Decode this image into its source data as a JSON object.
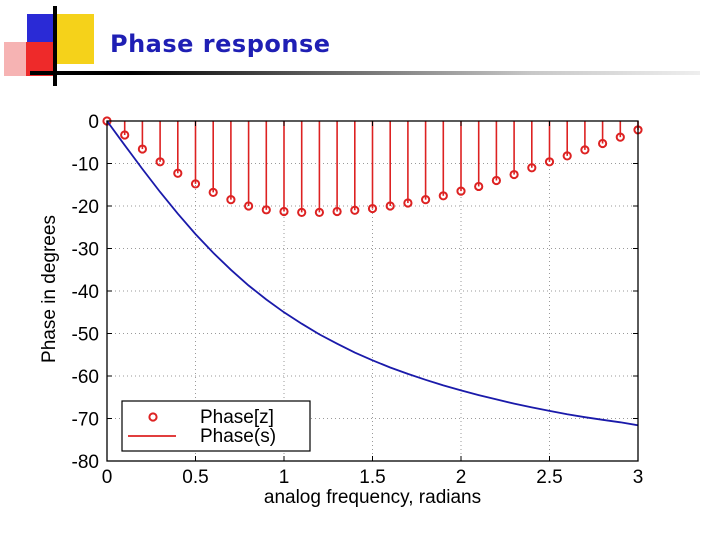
{
  "slide": {
    "title": "Phase response"
  },
  "colors": {
    "title": "#1f1fb4",
    "deco_blue": "#2a2ad6",
    "deco_yellow": "#f5d21a",
    "deco_red": "#ee2a2a",
    "deco_pink": "#f6b3b3",
    "phase_z": "#dd2222",
    "phase_s": "#1a1aaa"
  },
  "chart_data": {
    "type": "line",
    "xlabel": "analog frequency, radians",
    "ylabel": "Phase in degrees",
    "xlim": [
      0,
      3
    ],
    "ylim": [
      -80,
      0
    ],
    "xticks": [
      0,
      0.5,
      1,
      1.5,
      2,
      2.5,
      3
    ],
    "xtick_labels": [
      "0",
      "0.5",
      "1",
      "1.5",
      "2",
      "2.5",
      "3"
    ],
    "yticks": [
      0,
      -10,
      -20,
      -30,
      -40,
      -50,
      -60,
      -70,
      -80
    ],
    "ytick_labels": [
      "0",
      "-10",
      "-20",
      "-30",
      "-40",
      "-50",
      "-60",
      "-70",
      "-80"
    ],
    "grid": true,
    "legend_position": "bottom-left",
    "series": [
      {
        "name": "Phase[z]",
        "style": "stem",
        "x": [
          0,
          0.1,
          0.2,
          0.3,
          0.4,
          0.5,
          0.6,
          0.7,
          0.8,
          0.9,
          1.0,
          1.1,
          1.2,
          1.3,
          1.4,
          1.5,
          1.6,
          1.7,
          1.8,
          1.9,
          2.0,
          2.1,
          2.2,
          2.3,
          2.4,
          2.5,
          2.6,
          2.7,
          2.8,
          2.9,
          3.0
        ],
        "y": [
          0,
          -3.3,
          -6.6,
          -9.6,
          -12.3,
          -14.8,
          -16.8,
          -18.5,
          -20.0,
          -20.9,
          -21.3,
          -21.5,
          -21.5,
          -21.3,
          -21.0,
          -20.6,
          -20.0,
          -19.3,
          -18.5,
          -17.6,
          -16.5,
          -15.4,
          -14.0,
          -12.6,
          -11.0,
          -9.6,
          -8.2,
          -6.8,
          -5.3,
          -3.8,
          -2.1
        ]
      },
      {
        "name": "Phase(s)",
        "style": "line",
        "x": [
          0,
          0.1,
          0.2,
          0.3,
          0.4,
          0.5,
          0.6,
          0.7,
          0.8,
          0.9,
          1.0,
          1.1,
          1.2,
          1.3,
          1.4,
          1.5,
          1.6,
          1.7,
          1.8,
          1.9,
          2.0,
          2.1,
          2.2,
          2.3,
          2.4,
          2.5,
          2.6,
          2.7,
          2.8,
          2.9,
          3.0
        ],
        "y": [
          0,
          -5.7,
          -11.3,
          -16.7,
          -21.8,
          -26.6,
          -31.0,
          -35.0,
          -38.7,
          -42.0,
          -45.0,
          -47.7,
          -50.2,
          -52.4,
          -54.5,
          -56.3,
          -58.0,
          -59.5,
          -60.9,
          -62.2,
          -63.4,
          -64.5,
          -65.5,
          -66.5,
          -67.4,
          -68.2,
          -69.0,
          -69.7,
          -70.3,
          -70.9,
          -71.6
        ]
      }
    ]
  }
}
